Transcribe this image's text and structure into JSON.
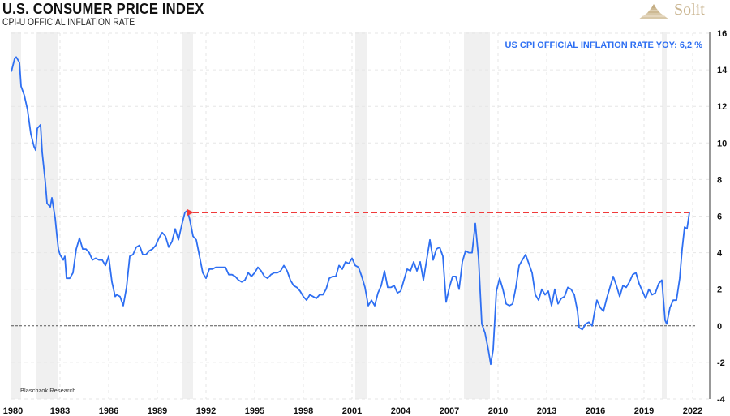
{
  "header": {
    "title": "U.S. CONSUMER PRICE INDEX",
    "subtitle": "CPI-U OFFICIAL INFLATION RATE",
    "logo_text": "Solit"
  },
  "colors": {
    "line": "#2e6ff2",
    "arrow": "#f03a3a",
    "recession": "#f0f0f0",
    "grid": "#e6e6e6",
    "zero_line": "#555555",
    "logo": "#c9b48f"
  },
  "chart_data": {
    "type": "line",
    "title": "U.S. CONSUMER PRICE INDEX",
    "subtitle": "CPI-U OFFICIAL INFLATION RATE",
    "xlabel": "",
    "ylabel": "",
    "xlim": [
      1980,
      2022.1
    ],
    "ylim": [
      -4,
      16
    ],
    "grid": true,
    "y_axis_side": "right",
    "x_ticks": [
      "1980",
      "1983",
      "1986",
      "1989",
      "1992",
      "1995",
      "1998",
      "2001",
      "2004",
      "2007",
      "2010",
      "2013",
      "2016",
      "2019",
      "2022"
    ],
    "y_ticks": [
      "16",
      "14",
      "12",
      "10",
      "8",
      "6",
      "4",
      "2",
      "0",
      "-2",
      "-4"
    ],
    "annotation": "US CPI OFFICIAL INFLATION RATE YOY: 6,2 %",
    "source": "Blaschzok Research",
    "reference_line": {
      "value": 6.2,
      "from": 1990.8,
      "to": 2021.8,
      "style": "dashed-arrow"
    },
    "zero_line": 0,
    "recession_bands": [
      [
        1980.0,
        1980.6
      ],
      [
        1981.5,
        1982.9
      ],
      [
        1990.5,
        1991.2
      ],
      [
        2001.2,
        2001.9
      ],
      [
        2007.9,
        2009.5
      ],
      [
        2020.1,
        2020.4
      ]
    ],
    "series": [
      {
        "name": "US CPI YoY",
        "points": [
          [
            1980.0,
            13.9
          ],
          [
            1980.2,
            14.6
          ],
          [
            1980.3,
            14.7
          ],
          [
            1980.5,
            14.4
          ],
          [
            1980.6,
            13.1
          ],
          [
            1980.8,
            12.6
          ],
          [
            1981.0,
            11.8
          ],
          [
            1981.2,
            10.5
          ],
          [
            1981.4,
            9.8
          ],
          [
            1981.5,
            9.6
          ],
          [
            1981.6,
            10.8
          ],
          [
            1981.8,
            11.0
          ],
          [
            1981.9,
            9.5
          ],
          [
            1982.1,
            7.8
          ],
          [
            1982.2,
            6.7
          ],
          [
            1982.4,
            6.5
          ],
          [
            1982.5,
            7.0
          ],
          [
            1982.7,
            5.9
          ],
          [
            1982.8,
            5.0
          ],
          [
            1982.9,
            4.2
          ],
          [
            1983.0,
            3.9
          ],
          [
            1983.2,
            3.6
          ],
          [
            1983.3,
            3.8
          ],
          [
            1983.4,
            2.6
          ],
          [
            1983.6,
            2.6
          ],
          [
            1983.8,
            2.9
          ],
          [
            1984.0,
            4.2
          ],
          [
            1984.2,
            4.8
          ],
          [
            1984.4,
            4.2
          ],
          [
            1984.6,
            4.2
          ],
          [
            1984.8,
            4.0
          ],
          [
            1985.0,
            3.6
          ],
          [
            1985.2,
            3.7
          ],
          [
            1985.4,
            3.6
          ],
          [
            1985.6,
            3.6
          ],
          [
            1985.8,
            3.3
          ],
          [
            1986.0,
            3.8
          ],
          [
            1986.2,
            2.4
          ],
          [
            1986.4,
            1.6
          ],
          [
            1986.5,
            1.7
          ],
          [
            1986.7,
            1.6
          ],
          [
            1986.9,
            1.1
          ],
          [
            1987.1,
            2.1
          ],
          [
            1987.3,
            3.8
          ],
          [
            1987.5,
            3.9
          ],
          [
            1987.7,
            4.3
          ],
          [
            1987.9,
            4.4
          ],
          [
            1988.1,
            3.9
          ],
          [
            1988.3,
            3.9
          ],
          [
            1988.5,
            4.1
          ],
          [
            1988.7,
            4.2
          ],
          [
            1988.9,
            4.4
          ],
          [
            1989.1,
            4.8
          ],
          [
            1989.3,
            5.1
          ],
          [
            1989.5,
            4.9
          ],
          [
            1989.7,
            4.3
          ],
          [
            1989.9,
            4.6
          ],
          [
            1990.1,
            5.3
          ],
          [
            1990.3,
            4.7
          ],
          [
            1990.5,
            5.5
          ],
          [
            1990.7,
            6.2
          ],
          [
            1990.85,
            6.3
          ],
          [
            1991.0,
            5.8
          ],
          [
            1991.2,
            4.9
          ],
          [
            1991.4,
            4.7
          ],
          [
            1991.6,
            3.8
          ],
          [
            1991.8,
            2.9
          ],
          [
            1992.0,
            2.6
          ],
          [
            1992.2,
            3.1
          ],
          [
            1992.4,
            3.1
          ],
          [
            1992.6,
            3.2
          ],
          [
            1992.8,
            3.2
          ],
          [
            1993.0,
            3.2
          ],
          [
            1993.2,
            3.2
          ],
          [
            1993.4,
            2.8
          ],
          [
            1993.6,
            2.8
          ],
          [
            1993.8,
            2.7
          ],
          [
            1994.0,
            2.5
          ],
          [
            1994.2,
            2.4
          ],
          [
            1994.4,
            2.5
          ],
          [
            1994.6,
            2.9
          ],
          [
            1994.8,
            2.7
          ],
          [
            1995.0,
            2.9
          ],
          [
            1995.2,
            3.2
          ],
          [
            1995.4,
            3.0
          ],
          [
            1995.6,
            2.7
          ],
          [
            1995.8,
            2.6
          ],
          [
            1996.0,
            2.8
          ],
          [
            1996.2,
            2.9
          ],
          [
            1996.4,
            2.9
          ],
          [
            1996.6,
            3.0
          ],
          [
            1996.8,
            3.3
          ],
          [
            1997.0,
            3.0
          ],
          [
            1997.2,
            2.5
          ],
          [
            1997.4,
            2.2
          ],
          [
            1997.6,
            2.1
          ],
          [
            1997.8,
            1.9
          ],
          [
            1998.0,
            1.6
          ],
          [
            1998.2,
            1.4
          ],
          [
            1998.4,
            1.7
          ],
          [
            1998.6,
            1.6
          ],
          [
            1998.8,
            1.5
          ],
          [
            1999.0,
            1.7
          ],
          [
            1999.2,
            1.7
          ],
          [
            1999.4,
            2.0
          ],
          [
            1999.6,
            2.6
          ],
          [
            1999.8,
            2.7
          ],
          [
            2000.0,
            2.7
          ],
          [
            2000.2,
            3.3
          ],
          [
            2000.4,
            3.1
          ],
          [
            2000.6,
            3.5
          ],
          [
            2000.8,
            3.4
          ],
          [
            2001.0,
            3.7
          ],
          [
            2001.2,
            3.3
          ],
          [
            2001.4,
            3.2
          ],
          [
            2001.6,
            2.7
          ],
          [
            2001.8,
            2.1
          ],
          [
            2002.0,
            1.1
          ],
          [
            2002.2,
            1.4
          ],
          [
            2002.4,
            1.1
          ],
          [
            2002.6,
            1.8
          ],
          [
            2002.8,
            2.2
          ],
          [
            2003.0,
            3.0
          ],
          [
            2003.2,
            2.1
          ],
          [
            2003.4,
            2.1
          ],
          [
            2003.6,
            2.2
          ],
          [
            2003.8,
            1.8
          ],
          [
            2004.0,
            1.9
          ],
          [
            2004.2,
            2.5
          ],
          [
            2004.4,
            3.1
          ],
          [
            2004.6,
            3.0
          ],
          [
            2004.8,
            3.5
          ],
          [
            2005.0,
            3.0
          ],
          [
            2005.2,
            3.5
          ],
          [
            2005.4,
            2.5
          ],
          [
            2005.6,
            3.6
          ],
          [
            2005.8,
            4.7
          ],
          [
            2006.0,
            3.6
          ],
          [
            2006.2,
            4.2
          ],
          [
            2006.4,
            4.3
          ],
          [
            2006.6,
            3.8
          ],
          [
            2006.8,
            1.3
          ],
          [
            2007.0,
            2.1
          ],
          [
            2007.2,
            2.7
          ],
          [
            2007.4,
            2.7
          ],
          [
            2007.6,
            2.0
          ],
          [
            2007.8,
            3.5
          ],
          [
            2008.0,
            4.1
          ],
          [
            2008.2,
            4.0
          ],
          [
            2008.4,
            4.0
          ],
          [
            2008.6,
            5.6
          ],
          [
            2008.8,
            3.7
          ],
          [
            2009.0,
            0.1
          ],
          [
            2009.2,
            -0.4
          ],
          [
            2009.4,
            -1.3
          ],
          [
            2009.55,
            -2.1
          ],
          [
            2009.7,
            -1.3
          ],
          [
            2009.9,
            1.9
          ],
          [
            2010.1,
            2.6
          ],
          [
            2010.3,
            2.0
          ],
          [
            2010.5,
            1.2
          ],
          [
            2010.7,
            1.1
          ],
          [
            2010.9,
            1.2
          ],
          [
            2011.1,
            2.1
          ],
          [
            2011.3,
            3.3
          ],
          [
            2011.5,
            3.6
          ],
          [
            2011.7,
            3.9
          ],
          [
            2011.9,
            3.4
          ],
          [
            2012.1,
            2.9
          ],
          [
            2012.3,
            1.7
          ],
          [
            2012.5,
            1.4
          ],
          [
            2012.7,
            2.0
          ],
          [
            2012.9,
            1.7
          ],
          [
            2013.1,
            1.9
          ],
          [
            2013.3,
            1.1
          ],
          [
            2013.5,
            2.0
          ],
          [
            2013.7,
            1.2
          ],
          [
            2013.9,
            1.5
          ],
          [
            2014.1,
            1.6
          ],
          [
            2014.3,
            2.1
          ],
          [
            2014.5,
            2.0
          ],
          [
            2014.7,
            1.7
          ],
          [
            2014.9,
            0.8
          ],
          [
            2015.0,
            -0.1
          ],
          [
            2015.2,
            -0.2
          ],
          [
            2015.4,
            0.1
          ],
          [
            2015.6,
            0.2
          ],
          [
            2015.8,
            0.0
          ],
          [
            2016.0,
            1.0
          ],
          [
            2016.1,
            1.4
          ],
          [
            2016.3,
            1.0
          ],
          [
            2016.5,
            0.8
          ],
          [
            2016.7,
            1.5
          ],
          [
            2016.9,
            2.1
          ],
          [
            2017.1,
            2.7
          ],
          [
            2017.3,
            2.2
          ],
          [
            2017.5,
            1.6
          ],
          [
            2017.7,
            2.2
          ],
          [
            2017.9,
            2.1
          ],
          [
            2018.1,
            2.4
          ],
          [
            2018.3,
            2.8
          ],
          [
            2018.5,
            2.9
          ],
          [
            2018.7,
            2.3
          ],
          [
            2018.9,
            1.9
          ],
          [
            2019.1,
            1.5
          ],
          [
            2019.3,
            2.0
          ],
          [
            2019.5,
            1.7
          ],
          [
            2019.7,
            1.8
          ],
          [
            2019.9,
            2.3
          ],
          [
            2020.1,
            2.5
          ],
          [
            2020.3,
            0.3
          ],
          [
            2020.4,
            0.1
          ],
          [
            2020.6,
            1.0
          ],
          [
            2020.8,
            1.4
          ],
          [
            2021.0,
            1.4
          ],
          [
            2021.2,
            2.6
          ],
          [
            2021.35,
            4.2
          ],
          [
            2021.5,
            5.4
          ],
          [
            2021.65,
            5.3
          ],
          [
            2021.8,
            6.2
          ]
        ]
      }
    ]
  }
}
